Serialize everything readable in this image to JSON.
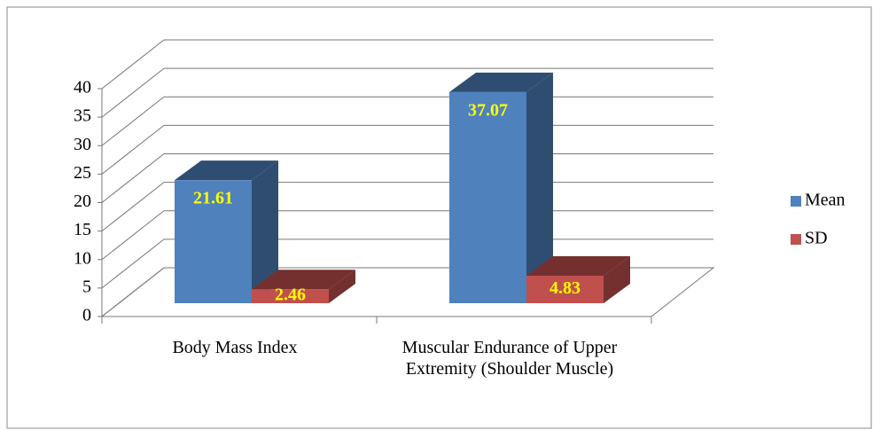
{
  "chart_data": {
    "type": "bar3d",
    "categories": [
      "Body Mass Index",
      "Muscular Endurance of Upper Extremity (Shoulder Muscle)"
    ],
    "series": [
      {
        "name": "Mean",
        "color": "#4f81bd",
        "values": [
          21.61,
          37.07
        ]
      },
      {
        "name": "SD",
        "color": "#c0504d",
        "values": [
          2.46,
          4.83
        ]
      }
    ],
    "ylim": [
      0,
      40
    ],
    "yticks": [
      0,
      5,
      10,
      15,
      20,
      25,
      30,
      35,
      40
    ],
    "grid": true,
    "legend": "right",
    "value_label_color": "#ffff00"
  }
}
